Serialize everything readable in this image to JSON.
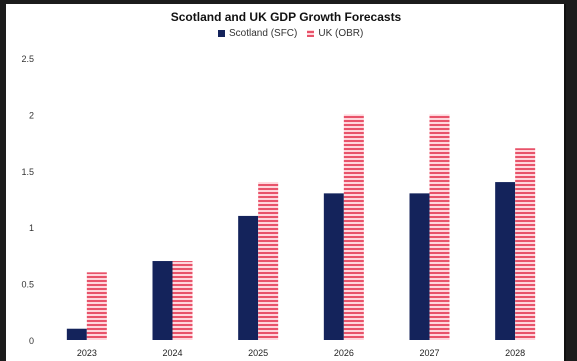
{
  "chart_data": {
    "type": "bar",
    "title": "Scotland and UK GDP Growth Forecasts",
    "categories": [
      "2023",
      "2024",
      "2025",
      "2026",
      "2027",
      "2028"
    ],
    "series": [
      {
        "name": "Scotland (SFC)",
        "values": [
          0.1,
          0.7,
          1.1,
          1.3,
          1.3,
          1.4
        ],
        "color": "#14235b"
      },
      {
        "name": "UK (OBR)",
        "values": [
          0.6,
          0.7,
          1.4,
          2.0,
          2.0,
          1.7
        ],
        "color": "#e8536a"
      }
    ],
    "ylim": [
      0,
      2.5
    ],
    "yticks": [
      "0",
      "0.5",
      "1",
      "1.5",
      "2",
      "2.5"
    ],
    "ytick_values": [
      0,
      0.5,
      1,
      1.5,
      2,
      2.5
    ],
    "legend": "top-center",
    "grid": false
  }
}
